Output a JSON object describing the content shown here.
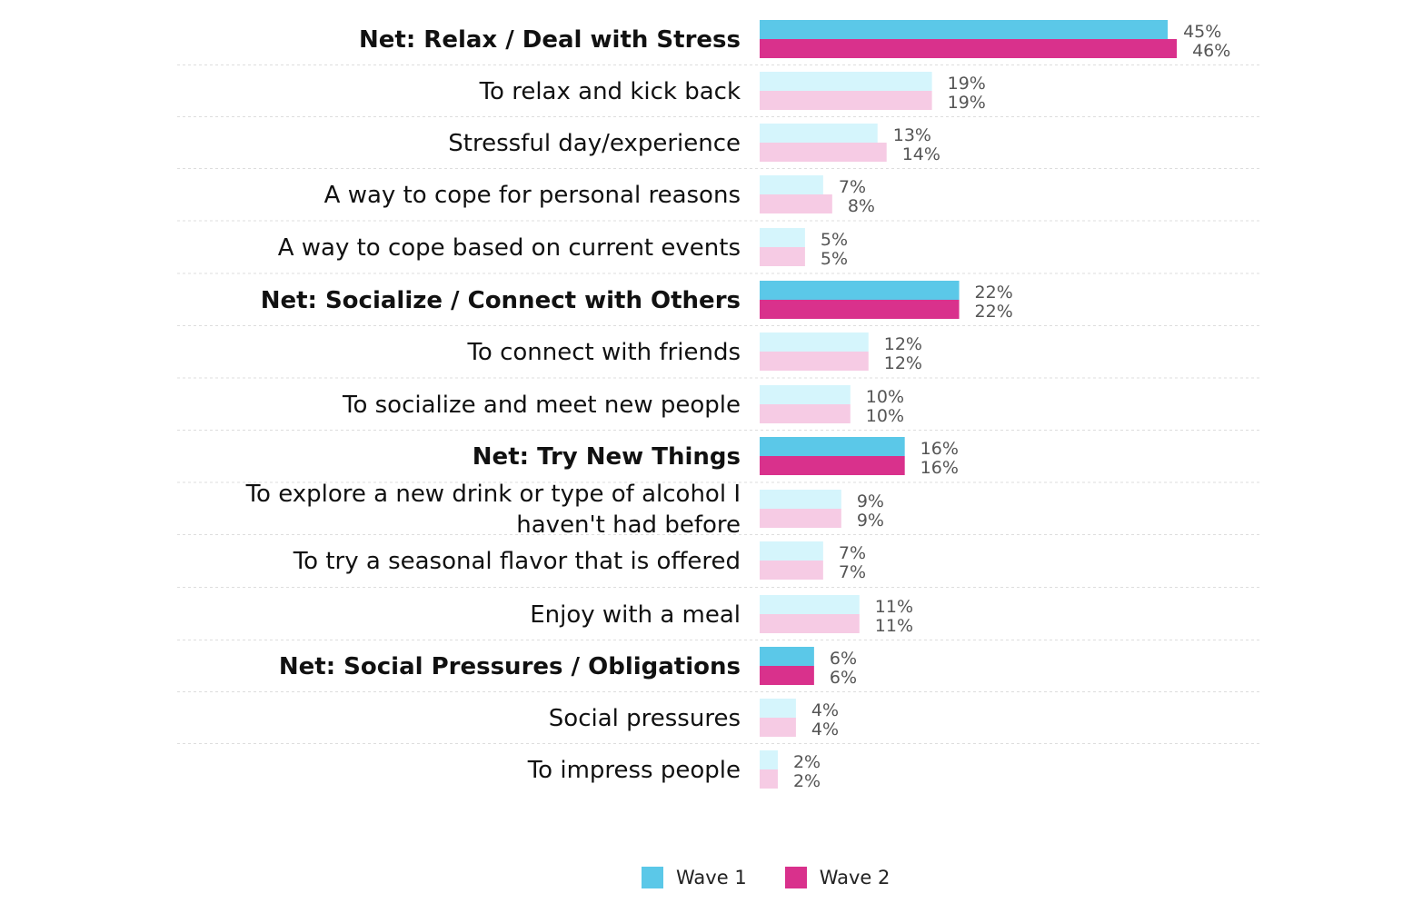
{
  "colors": {
    "wave1_net": "#5bc8e8",
    "wave2_net": "#d9318c",
    "wave1_sub": "#d5f5fc",
    "wave2_sub": "#f6cbe4"
  },
  "chart_data": {
    "type": "bar",
    "orientation": "horizontal",
    "title": "",
    "xlabel": "",
    "ylabel": "",
    "xlim": [
      0,
      50
    ],
    "grid": false,
    "legend_position": "bottom",
    "categories": [
      "Net: Relax / Deal with Stress",
      "To relax and kick back",
      "Stressful day/experience",
      "A way to cope for personal reasons",
      "A way to cope based on current events",
      "Net: Socialize / Connect with Others",
      "To connect with friends",
      "To socialize and meet new people",
      "Net: Try New Things",
      "To explore a new drink or type of alcohol I haven't had before",
      "To try a seasonal flavor that is offered",
      "Enjoy with a meal",
      "Net: Social Pressures / Obligations",
      "Social pressures",
      "To impress people"
    ],
    "category_lines": [
      [
        "Net: Relax / Deal with Stress"
      ],
      [
        "To relax and kick back"
      ],
      [
        "Stressful day/experience"
      ],
      [
        "A way to cope for personal reasons"
      ],
      [
        "A way to cope based on current events"
      ],
      [
        "Net: Socialize / Connect with Others"
      ],
      [
        "To connect with friends"
      ],
      [
        "To socialize and meet new people"
      ],
      [
        "Net: Try New Things"
      ],
      [
        "To explore a new drink or type of alcohol I",
        "haven't had before"
      ],
      [
        "To try a seasonal flavor that is offered"
      ],
      [
        "Enjoy with a meal"
      ],
      [
        "Net: Social Pressures / Obligations"
      ],
      [
        "Social pressures"
      ],
      [
        "To impress people"
      ]
    ],
    "is_net": [
      true,
      false,
      false,
      false,
      false,
      true,
      false,
      false,
      true,
      false,
      false,
      false,
      true,
      false,
      false
    ],
    "series": [
      {
        "name": "Wave 1",
        "values": [
          45,
          19,
          13,
          7,
          5,
          22,
          12,
          10,
          16,
          9,
          7,
          11,
          6,
          4,
          2
        ],
        "labels": [
          "45%",
          "19%",
          "13%",
          "7%",
          "5%",
          "22%",
          "12%",
          "10%",
          "16%",
          "9%",
          "7%",
          "11%",
          "6%",
          "4%",
          "2%"
        ]
      },
      {
        "name": "Wave 2",
        "values": [
          46,
          19,
          14,
          8,
          5,
          22,
          12,
          10,
          16,
          9,
          7,
          11,
          6,
          4,
          2
        ],
        "labels": [
          "46%",
          "19%",
          "14%",
          "8%",
          "5%",
          "22%",
          "12%",
          "10%",
          "16%",
          "9%",
          "7%",
          "11%",
          "6%",
          "4%",
          "2%"
        ]
      }
    ]
  },
  "legend": {
    "wave1": "Wave 1",
    "wave2": "Wave 2"
  }
}
